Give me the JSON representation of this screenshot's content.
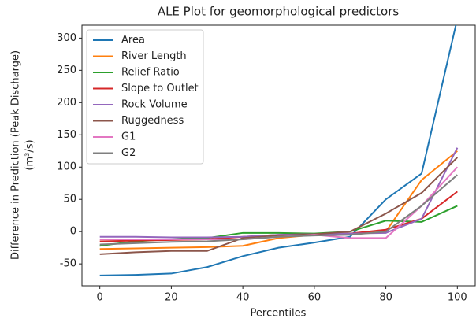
{
  "chart_data": {
    "type": "line",
    "title": "ALE Plot for geomorphological predictors",
    "xlabel": "Percentiles",
    "ylabel": [
      "Difference in Prediction (Peak Discharge)",
      "(m³/s)"
    ],
    "x": [
      0,
      10,
      20,
      30,
      40,
      50,
      60,
      70,
      80,
      90,
      100
    ],
    "xlim": [
      -5,
      105
    ],
    "xticks": [
      0,
      20,
      40,
      60,
      80,
      100
    ],
    "ylim": [
      -84,
      320
    ],
    "yticks": [
      -50,
      0,
      50,
      100,
      150,
      200,
      250,
      300
    ],
    "legend": "upper left",
    "series": [
      {
        "name": "Area",
        "color": "#1f77b4",
        "values": [
          -68,
          -67,
          -65,
          -55,
          -38,
          -25,
          -17,
          -8,
          50,
          90,
          330
        ]
      },
      {
        "name": "River Length",
        "color": "#ff7f0e",
        "values": [
          -27,
          -26,
          -25,
          -24,
          -22,
          -10,
          -5,
          -3,
          0,
          80,
          125
        ]
      },
      {
        "name": "Relief Ratio",
        "color": "#2ca02c",
        "values": [
          -22,
          -15,
          -12,
          -10,
          -2,
          -2,
          -3,
          0,
          17,
          15,
          40
        ]
      },
      {
        "name": "Slope to Outlet",
        "color": "#d62728",
        "values": [
          -15,
          -14,
          -13,
          -12,
          -8,
          -5,
          -4,
          -3,
          3,
          20,
          62
        ]
      },
      {
        "name": "Rock Volume",
        "color": "#9467bd",
        "values": [
          -8,
          -8,
          -9,
          -9,
          -8,
          -5,
          -4,
          -3,
          -2,
          20,
          130
        ]
      },
      {
        "name": "Ruggedness",
        "color": "#8c564b",
        "values": [
          -35,
          -32,
          -30,
          -30,
          -10,
          -6,
          -4,
          0,
          28,
          60,
          115
        ]
      },
      {
        "name": "G1",
        "color": "#e377c2",
        "values": [
          -12,
          -12,
          -12,
          -12,
          -12,
          -8,
          -5,
          -10,
          -10,
          40,
          100
        ]
      },
      {
        "name": "G2",
        "color": "#7f7f7f",
        "values": [
          -20,
          -18,
          -16,
          -15,
          -12,
          -8,
          -6,
          -5,
          0,
          40,
          88
        ]
      }
    ]
  }
}
